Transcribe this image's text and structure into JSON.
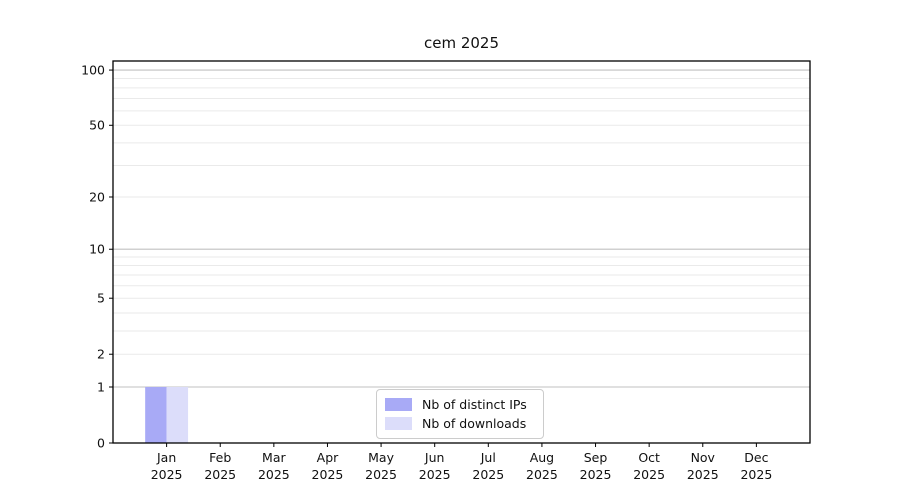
{
  "figure": {
    "background": "#ffffff"
  },
  "chart_data": {
    "type": "bar",
    "title": "cem 2025",
    "categories": [
      "Jan",
      "Feb",
      "Mar",
      "Apr",
      "May",
      "Jun",
      "Jul",
      "Aug",
      "Sep",
      "Oct",
      "Nov",
      "Dec"
    ],
    "x_year_label": "2025",
    "series": [
      {
        "name": "Nb of distinct IPs",
        "color": "#a8aaf6",
        "values": [
          1,
          0,
          0,
          0,
          0,
          0,
          0,
          0,
          0,
          0,
          0,
          0
        ]
      },
      {
        "name": "Nb of downloads",
        "color": "#dcddfa",
        "values": [
          1,
          0,
          0,
          0,
          0,
          0,
          0,
          0,
          0,
          0,
          0,
          0
        ]
      }
    ],
    "y_axis": {
      "scale": "log1p",
      "tick_values": [
        0,
        1,
        2,
        5,
        10,
        20,
        50,
        100
      ],
      "major_grid_values": [
        1,
        10,
        100
      ],
      "minor_grid_values": [
        2,
        3,
        4,
        5,
        6,
        7,
        8,
        9,
        20,
        30,
        40,
        50,
        60,
        70,
        80,
        90
      ],
      "range": [
        0,
        112
      ]
    },
    "legend": {
      "position": "lower center"
    },
    "style": {
      "spine_color": "#000000",
      "major_grid_color": "#c0c0c0",
      "minor_grid_color": "#eaeaea",
      "tick_color": "#000000",
      "text_color": "#111111",
      "legend_border_color": "#cccccc",
      "legend_bg": "#ffffff"
    }
  }
}
